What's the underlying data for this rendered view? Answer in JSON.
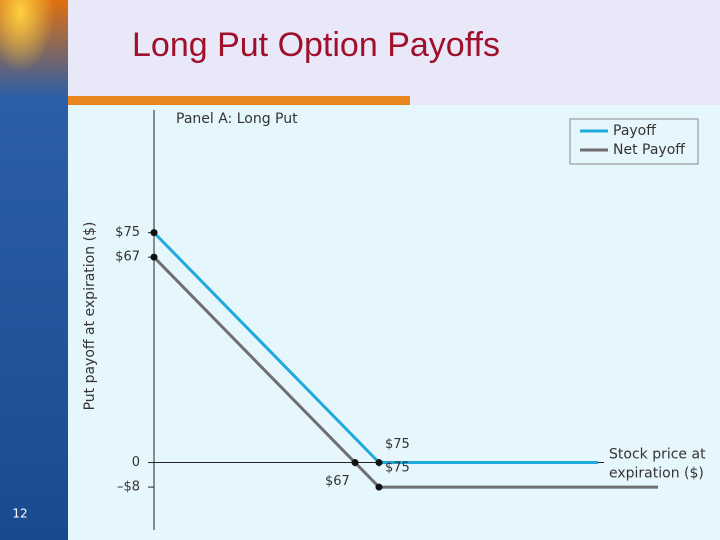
{
  "slide": {
    "title": "Long Put Option Payoffs",
    "number": "12"
  },
  "chart_data": {
    "type": "line",
    "title": "Panel A: Long Put",
    "y_label": "Put payoff at expiration ($)",
    "x_label": [
      "Stock price at",
      "expiration ($)"
    ],
    "series": [
      {
        "name": "Payoff",
        "color": "#1fa9dc",
        "x": [
          0,
          75,
          148
        ],
        "values": [
          75,
          0,
          0
        ]
      },
      {
        "name": "Net Payoff",
        "color": "#6e6e73",
        "x": [
          0,
          67,
          75,
          168
        ],
        "values": [
          67,
          0,
          -8,
          -8
        ]
      }
    ],
    "xlim": [
      0,
      150
    ],
    "ylim": [
      -22,
      115
    ],
    "xticks": [
      {
        "value": 67,
        "label": "$67"
      },
      {
        "value": 75,
        "label": "$75"
      }
    ],
    "yticks": [
      {
        "value": 75,
        "label": "$75"
      },
      {
        "value": 67,
        "label": "$67"
      },
      0,
      {
        "value": -8,
        "label": "–$8"
      }
    ],
    "annotations": [
      {
        "text": "$75",
        "x": 75,
        "y": -8
      }
    ],
    "legend": "top-right"
  }
}
